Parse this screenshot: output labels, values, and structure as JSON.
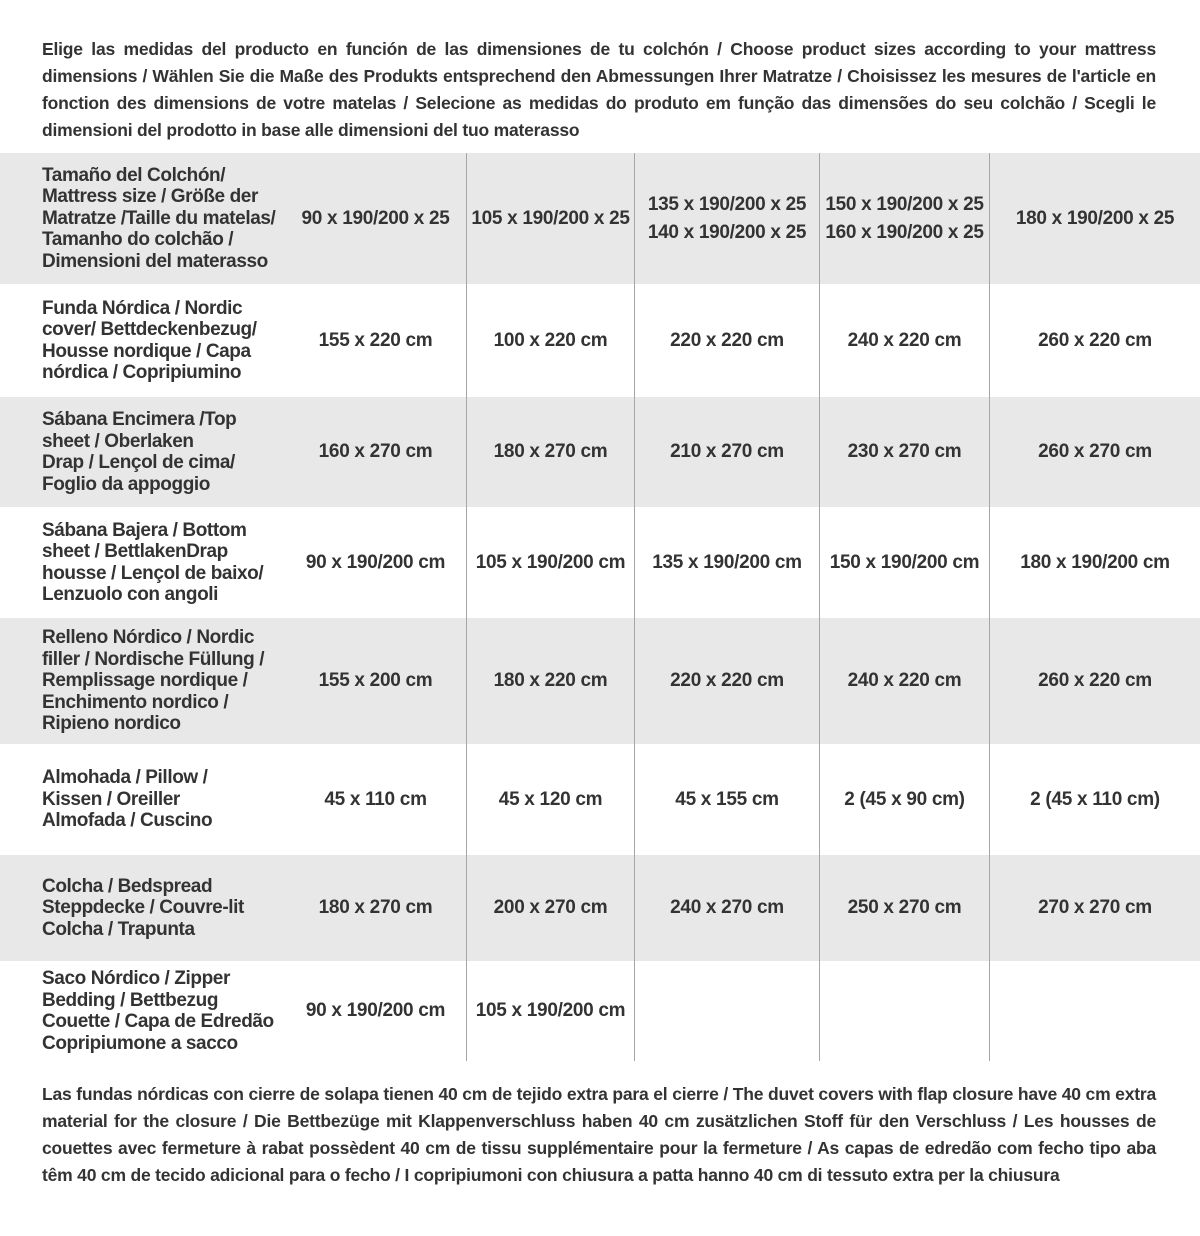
{
  "colors": {
    "row-shade": "#e8e8e8",
    "divider": "#a6a6a6",
    "text": "#333333",
    "page-bg": "#ffffff"
  },
  "intro": {
    "text": "Elige las medidas del producto en función de las dimensiones de tu colchón / Choose product sizes according to your mattress dimensions / Wählen Sie die Maße des Produkts entsprechend den Abmessungen Ihrer Matratze / Choisissez les mesures de l'article en fonction des dimensions de votre matelas / Selecione as medidas do produto em função das dimensões do seu colchão / Scegli le dimensioni del prodotto in base alle dimensioni del tuo materasso"
  },
  "footnote": {
    "text": "Las fundas nórdicas con cierre de solapa tienen 40 cm de tejido extra para el cierre  / The duvet covers with flap closure have 40 cm extra material for the closure / Die Bettbezüge mit Klappenverschluss haben 40 cm zusätzlichen Stoff für den Verschluss / Les housses de couettes avec fermeture à rabat possèdent 40 cm de tissu supplémentaire pour la fermeture / As capas de edredão com fecho tipo aba têm 40 cm de tecido adicional para o fecho / I copripiumoni con chiusura a patta hanno 40 cm di tessuto extra per la chiusura"
  },
  "table": {
    "header": {
      "label_lines": [
        "Tamaño del Colchón/",
        "Mattress size / Größe der",
        "Matratze /Taille du matelas/",
        "Tamanho do colchão /",
        "Dimensioni del materasso"
      ],
      "columns": [
        [
          "90 x 190/200 x 25"
        ],
        [
          "105 x 190/200 x 25"
        ],
        [
          "135 x 190/200 x 25",
          "140 x 190/200 x 25"
        ],
        [
          "150 x 190/200 x 25",
          "160 x 190/200 x 25"
        ],
        [
          "180 x 190/200 x 25"
        ]
      ]
    },
    "rows": [
      {
        "label_lines": [
          "Funda Nórdica /  Nordic",
          "cover/ Bettdeckenbezug/",
          "Housse nordique  / Capa",
          "nórdica / Copripiumino"
        ],
        "values": [
          "155 x 220 cm",
          "100 x 220 cm",
          "220 x 220 cm",
          "240 x 220 cm",
          "260 x 220 cm"
        ]
      },
      {
        "label_lines": [
          "Sábana Encimera /Top",
          "sheet / Oberlaken",
          "Drap / Lençol de cima/",
          "Foglio da appoggio"
        ],
        "values": [
          "160 x 270 cm",
          "180 x 270 cm",
          "210 x 270 cm",
          "230 x 270 cm",
          "260 x 270 cm"
        ]
      },
      {
        "label_lines": [
          "Sábana Bajera / Bottom",
          "sheet / BettlakenDrap",
          "housse / Lençol de baixo/",
          "Lenzuolo con angoli"
        ],
        "values": [
          "90 x 190/200 cm",
          "105 x 190/200 cm",
          "135 x 190/200 cm",
          "150 x 190/200 cm",
          "180 x 190/200 cm"
        ]
      },
      {
        "label_lines": [
          "Relleno Nórdico / Nordic",
          "filler / Nordische Füllung /",
          "Remplissage nordique /",
          "Enchimento nordico /",
          "Ripieno nordico"
        ],
        "values": [
          "155 x 200 cm",
          "180 x 220 cm",
          "220 x 220 cm",
          "240 x 220 cm",
          "260 x 220 cm"
        ]
      },
      {
        "label_lines": [
          "Almohada  / Pillow /",
          "Kissen / Oreiller",
          "Almofada / Cuscino"
        ],
        "values": [
          "45 x 110 cm",
          "45 x 120 cm",
          "45 x 155 cm",
          "2 (45 x 90 cm)",
          "2 (45 x 110 cm)"
        ]
      },
      {
        "label_lines": [
          "Colcha / Bedspread",
          "Steppdecke / Couvre-lit",
          "Colcha / Trapunta"
        ],
        "values": [
          "180 x 270 cm",
          "200 x 270 cm",
          "240 x 270 cm",
          "250 x 270 cm",
          "270 x 270 cm"
        ]
      },
      {
        "label_lines": [
          "Saco Nórdico / Zipper",
          "Bedding / Bettbezug",
          "Couette  / Capa de Edredão",
          "Copripiumone a sacco"
        ],
        "values": [
          "90 x 190/200 cm",
          "105 x 190/200 cm",
          "",
          "",
          ""
        ]
      }
    ]
  }
}
